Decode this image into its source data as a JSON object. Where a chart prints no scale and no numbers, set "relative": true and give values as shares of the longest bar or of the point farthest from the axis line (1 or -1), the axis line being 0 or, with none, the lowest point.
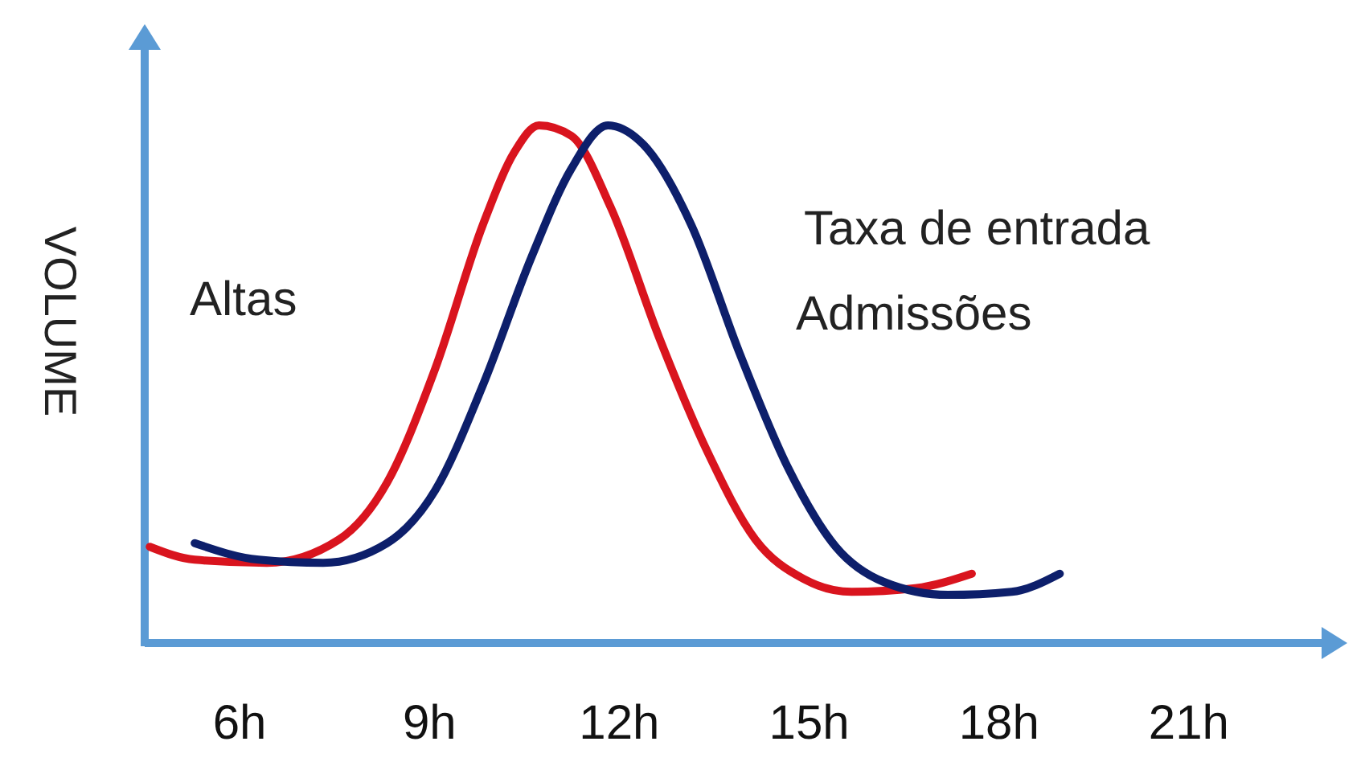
{
  "chart_data": {
    "type": "line",
    "ylabel": "VOLUME",
    "relative": true,
    "xlim": [
      4.5,
      23.3
    ],
    "xticks": [
      {
        "value": 6,
        "label": "6h"
      },
      {
        "value": 9,
        "label": "9h"
      },
      {
        "value": 12,
        "label": "12h"
      },
      {
        "value": 15,
        "label": "15h"
      },
      {
        "value": 18,
        "label": "18h"
      },
      {
        "value": 21,
        "label": "21h"
      }
    ],
    "marker": "none",
    "line_style": "solid",
    "annotations": [
      "Taxa de entrada"
    ],
    "series": [
      {
        "name": "Altas",
        "color": "#d9141e",
        "x": [
          4.58,
          5.29,
          6.43,
          7.57,
          8.33,
          9.09,
          9.85,
          10.35,
          10.73,
          11.24,
          11.87,
          12.63,
          13.39,
          14.15,
          14.91,
          15.67,
          16.68,
          17.57
        ],
        "values": [
          0.186,
          0.161,
          0.155,
          0.2,
          0.31,
          0.53,
          0.81,
          0.95,
          1,
          0.98,
          0.84,
          0.59,
          0.37,
          0.2,
          0.124,
          0.099,
          0.106,
          0.134
        ]
      },
      {
        "name": "Admissões",
        "color": "#0d1f6b",
        "x": [
          5.29,
          6.3,
          7.32,
          8.33,
          9.09,
          9.85,
          10.61,
          11.24,
          11.82,
          12.38,
          13.14,
          13.9,
          14.66,
          15.42,
          16.18,
          17.19,
          18.2,
          18.96
        ],
        "values": [
          0.193,
          0.161,
          0.155,
          0.193,
          0.295,
          0.5,
          0.745,
          0.916,
          1,
          0.963,
          0.807,
          0.56,
          0.34,
          0.186,
          0.118,
          0.093,
          0.099,
          0.134
        ]
      }
    ]
  }
}
